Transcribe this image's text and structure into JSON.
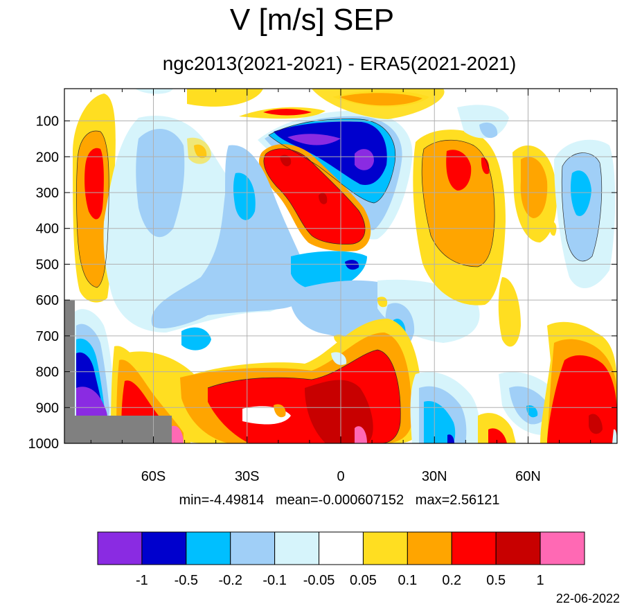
{
  "title": "V [m/s] SEP",
  "subtitle": "ngc2013(2021-2021) - ERA5(2021-2021)",
  "stats_text": "min=-4.49814   mean=-0.000607152   max=2.56121",
  "date": "22-06-2022",
  "chart_data": {
    "type": "heatmap",
    "title": "V [m/s] SEP",
    "subtitle": "ngc2013(2021-2021) - ERA5(2021-2021)",
    "x_ticks": [
      {
        "value": -60,
        "label": "60S"
      },
      {
        "value": -30,
        "label": "30S"
      },
      {
        "value": 0,
        "label": "0"
      },
      {
        "value": 30,
        "label": "30N"
      },
      {
        "value": 60,
        "label": "60N"
      }
    ],
    "y_ticks": [
      100,
      200,
      300,
      400,
      500,
      600,
      700,
      800,
      900,
      1000
    ],
    "xlim": [
      -88.5,
      88.5
    ],
    "ylim": [
      1000,
      10
    ],
    "grid": true,
    "colorbar": {
      "levels": [
        "-1",
        "-0.5",
        "-0.2",
        "-0.1",
        "-0.05",
        "0.05",
        "0.1",
        "0.2",
        "0.5",
        "1"
      ],
      "colors": [
        "#8a2be2",
        "#0000cd",
        "#00bfff",
        "#a0cff7",
        "#d6f4fb",
        "#ffffff",
        "#ffde21",
        "#ffa500",
        "#ff0000",
        "#c80000",
        "#ff69b4"
      ]
    },
    "stats": {
      "min": -4.49814,
      "mean": -0.000607152,
      "max": 2.56121
    },
    "features": [
      {
        "name": "upper-tropical-negative",
        "lat_range": [
          -7,
          16
        ],
        "p_range": [
          110,
          330
        ],
        "min_value": "< -1"
      },
      {
        "name": "upper-tropical-positive",
        "lat_range": [
          -24,
          8
        ],
        "p_range": [
          180,
          450
        ],
        "max_value": "0.5 to 1"
      },
      {
        "name": "southern-highlat-positive",
        "lat_range": [
          -84,
          -72
        ],
        "p_range": [
          120,
          620
        ],
        "max_value": "0.2 to 0.5"
      },
      {
        "name": "lower-tropical-positive",
        "lat_range": [
          -40,
          30
        ],
        "p_range": [
          700,
          1000
        ],
        "max_value": "> 1"
      },
      {
        "name": "southern-surface-negative",
        "lat_range": [
          -84,
          -72
        ],
        "p_range": [
          740,
          930
        ],
        "min_value": "< -1"
      },
      {
        "name": "northern-highlat-positive",
        "lat_range": [
          70,
          88
        ],
        "p_range": [
          700,
          1000
        ],
        "max_value": "0.5 to 1"
      },
      {
        "name": "northern-midlat-positive",
        "lat_range": [
          27,
          52
        ],
        "p_range": [
          170,
          450
        ],
        "max_value": "0.2 to 0.5"
      },
      {
        "name": "southern-midlat-negative",
        "lat_range": [
          -55,
          -20
        ],
        "p_range": [
          180,
          800
        ],
        "min_value": "-0.5 to -0.2"
      }
    ]
  }
}
